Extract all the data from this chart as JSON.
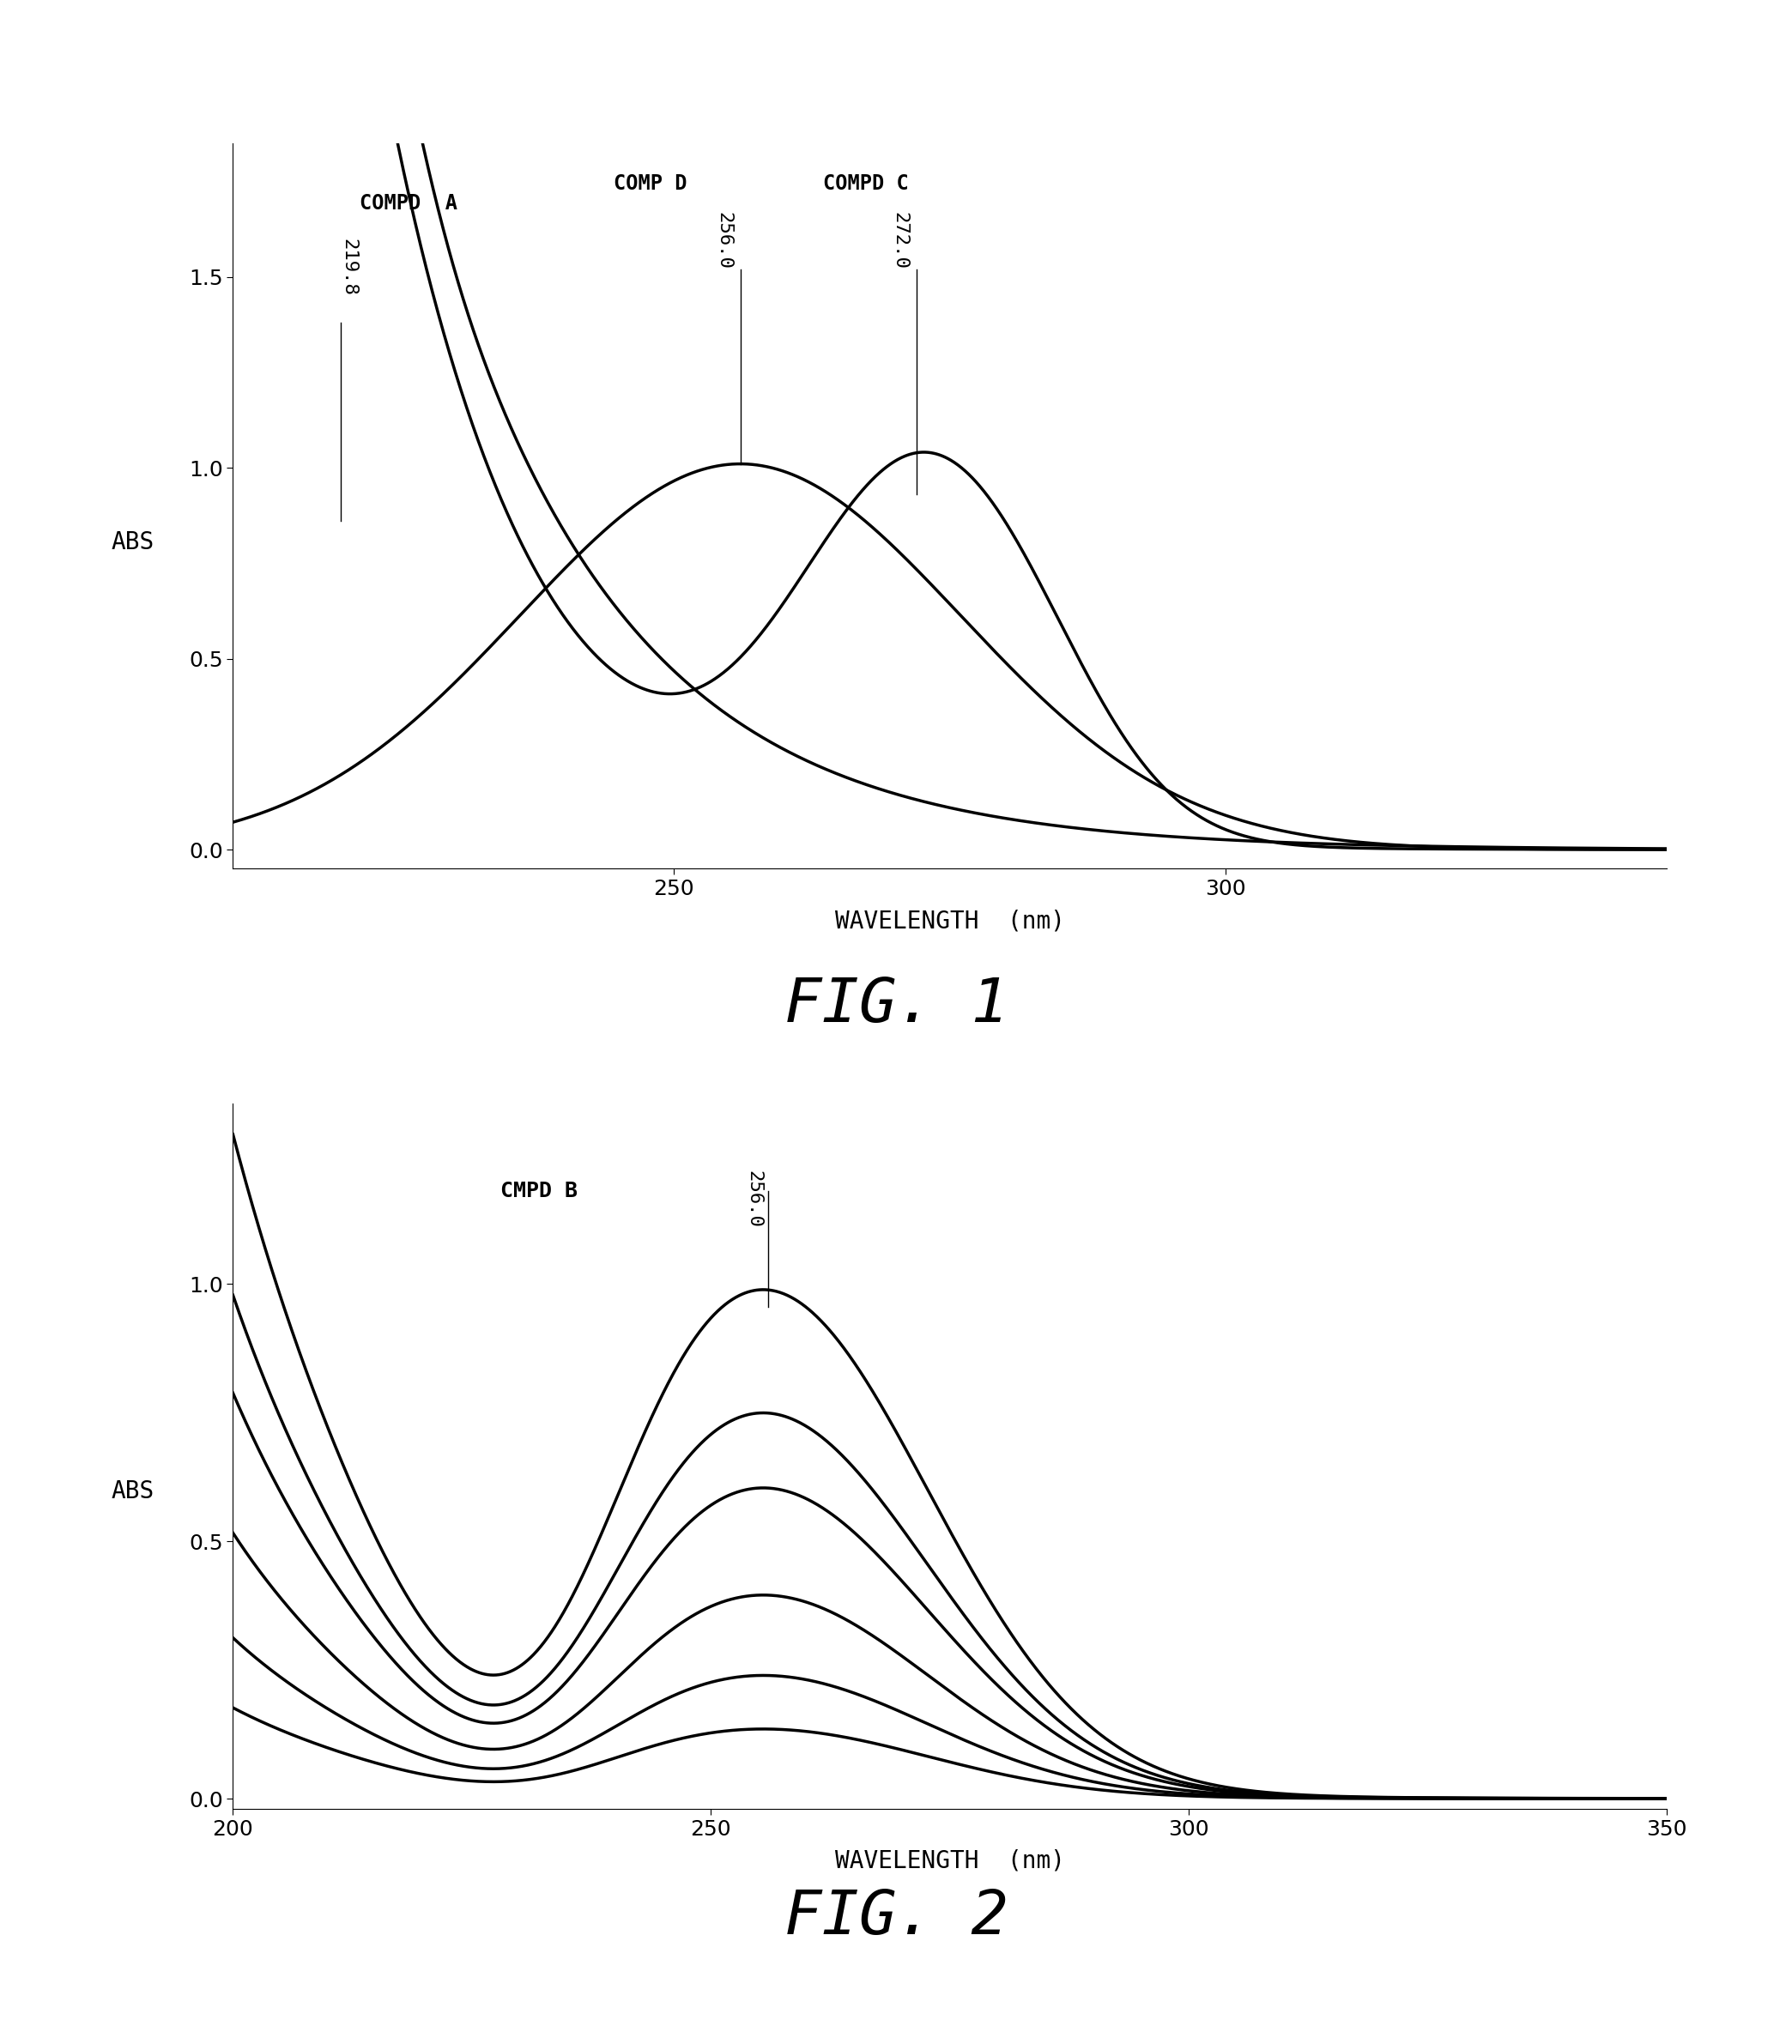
{
  "fig1": {
    "title": "FIG. 1",
    "xlabel": "WAVELENGTH  (nm)",
    "ylabel": "ABS",
    "xlim": [
      210,
      340
    ],
    "ylim": [
      -0.05,
      1.85
    ],
    "yticks": [
      0.0,
      0.5,
      1.0,
      1.5
    ],
    "xticks": [
      250,
      300
    ],
    "compd_a_label": "COMPD  A",
    "compd_a_peak_label": "219.8",
    "compd_d_label": "COMP D",
    "compd_d_peak_label": "256.0",
    "compd_c_label": "COMPD C",
    "compd_c_peak_label": "272.0"
  },
  "fig2": {
    "title": "FIG. 2",
    "xlabel": "WAVELENGTH  (nm)",
    "ylabel": "ABS",
    "xlim": [
      200,
      350
    ],
    "ylim": [
      -0.02,
      1.35
    ],
    "yticks": [
      0.0,
      0.5,
      1.0
    ],
    "xticks": [
      200,
      250,
      300,
      350
    ],
    "cmpd_b_label": "CMPD B",
    "cmpd_b_peak_label": "256.0",
    "num_curves": 6,
    "peak_scales": [
      0.95,
      0.72,
      0.58,
      0.38,
      0.23,
      0.13
    ]
  },
  "line_color": "#000000",
  "background_color": "#ffffff",
  "font_size_labels": 20,
  "font_size_ticks": 18,
  "font_size_title": 52,
  "font_size_annot": 17,
  "line_width": 2.5
}
